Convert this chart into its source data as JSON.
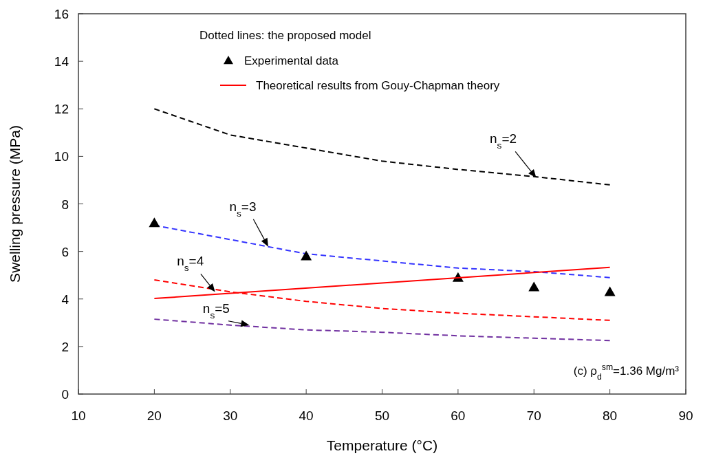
{
  "chart_data": {
    "type": "line",
    "xlabel": "Temperature (°C)",
    "ylabel": "Swelling pressure (MPa)",
    "xlim": [
      10,
      90
    ],
    "xticks": [
      10,
      20,
      30,
      40,
      50,
      60,
      70,
      80,
      90
    ],
    "ylim": [
      0,
      16
    ],
    "yticks": [
      0,
      2,
      4,
      6,
      8,
      10,
      12,
      14,
      16
    ],
    "grid": false,
    "legend": "top",
    "legend_title": "Dotted lines: the proposed model",
    "series": [
      {
        "type": "line",
        "line_style": "dashed",
        "color": "#000000",
        "x": [
          20,
          30,
          40,
          50,
          60,
          70,
          80
        ],
        "values": [
          12.0,
          10.9,
          10.35,
          9.8,
          9.45,
          9.15,
          8.8
        ]
      },
      {
        "type": "line",
        "line_style": "dashed",
        "color": "#3333ff",
        "x": [
          20,
          30,
          40,
          50,
          60,
          70,
          80
        ],
        "values": [
          7.1,
          6.5,
          5.9,
          5.6,
          5.3,
          5.15,
          4.9
        ]
      },
      {
        "type": "line",
        "line_style": "dashed",
        "color": "#ff0000",
        "x": [
          20,
          30,
          40,
          50,
          60,
          70,
          80
        ],
        "values": [
          4.8,
          4.3,
          3.9,
          3.6,
          3.4,
          3.25,
          3.1
        ]
      },
      {
        "type": "line",
        "line_style": "dashed",
        "color": "#7030a0",
        "x": [
          20,
          30,
          40,
          50,
          60,
          70,
          80
        ],
        "values": [
          3.15,
          2.9,
          2.7,
          2.6,
          2.45,
          2.35,
          2.25
        ]
      },
      {
        "type": "scatter",
        "name": "Experimental data",
        "marker": "triangle",
        "color": "#000000",
        "x": [
          20,
          40,
          60,
          70,
          80
        ],
        "values": [
          7.2,
          5.8,
          4.9,
          4.5,
          4.3
        ]
      },
      {
        "type": "line",
        "name": "Theoretical results from Gouy-Chapman theory",
        "line_style": "solid",
        "color": "#ff0000",
        "x": [
          20,
          80
        ],
        "values": [
          4.02,
          5.33
        ]
      }
    ],
    "annotations": [
      {
        "text": "n$_{s}$=2",
        "x": 70.3,
        "y": 9.1
      },
      {
        "text": "n$_{s}$=3",
        "x": 35,
        "y": 6.2
      },
      {
        "text": "n$_{s}$=4",
        "x": 28,
        "y": 4.3
      },
      {
        "text": "n$_{s}$=5",
        "x": 32.5,
        "y": 2.9
      },
      "(c) ρ$_{d}$$^{sm}$=1.36 Mg/m³"
    ]
  }
}
